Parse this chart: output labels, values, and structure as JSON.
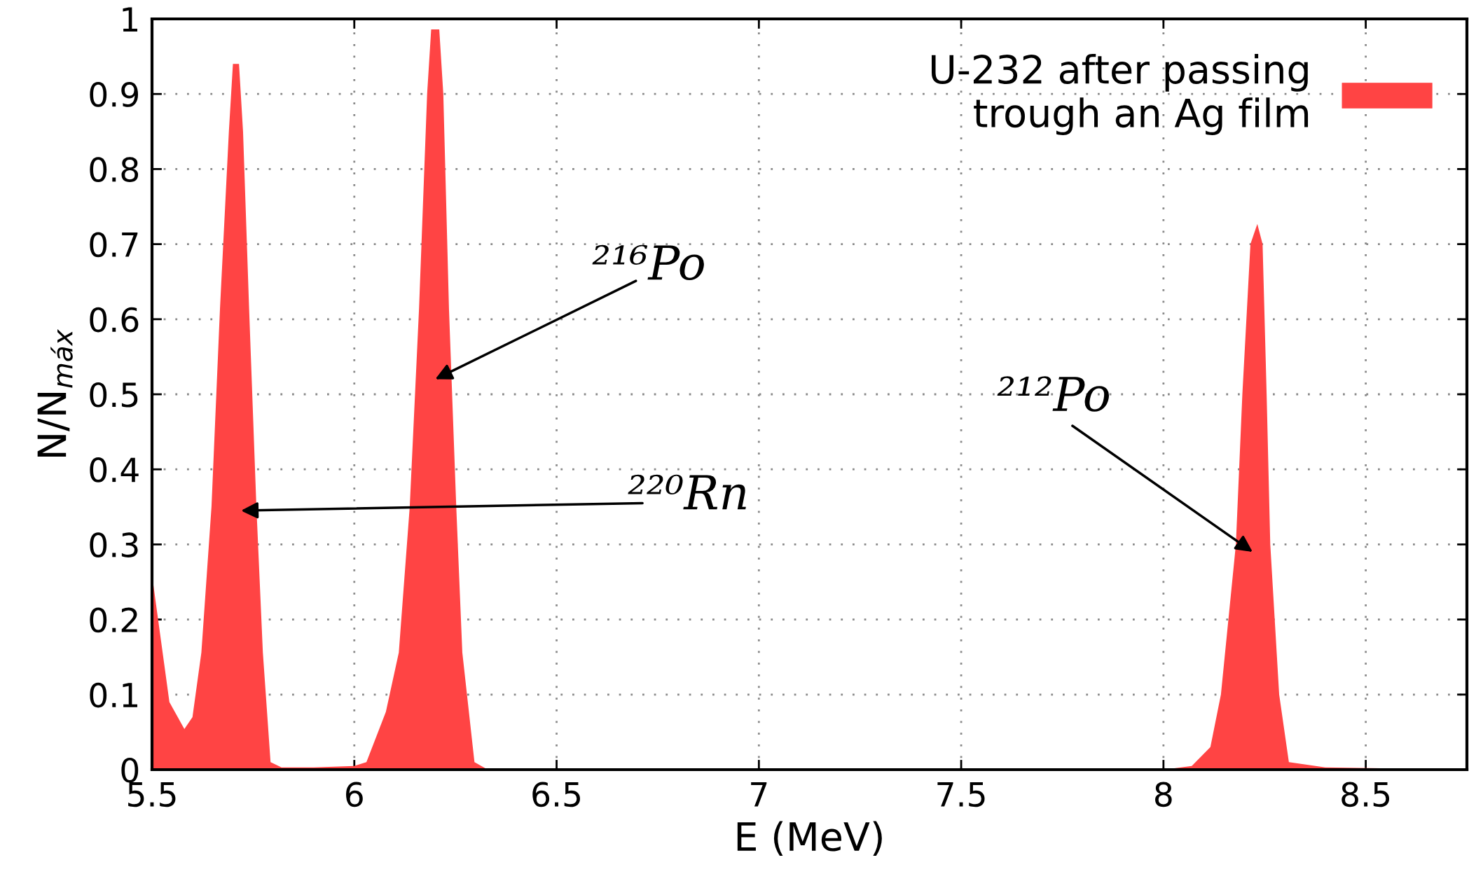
{
  "chart_data": {
    "type": "area",
    "xlabel": "E (MeV)",
    "ylabel": "N/N$_{máx}$",
    "series": [
      {
        "name": "U-232 after passing\ntrough an Ag film",
        "color": "#ff4444",
        "x": [
          5.5,
          5.51,
          5.543,
          5.58,
          5.6,
          5.622,
          5.647,
          5.668,
          5.69,
          5.7,
          5.708,
          5.715,
          5.725,
          5.74,
          5.758,
          5.774,
          5.793,
          5.82,
          5.9,
          6.0,
          6.03,
          6.078,
          6.11,
          6.137,
          6.16,
          6.18,
          6.19,
          6.21,
          6.22,
          6.234,
          6.252,
          6.267,
          6.297,
          6.33,
          8.0,
          8.07,
          8.116,
          8.142,
          8.179,
          8.195,
          8.215,
          8.232,
          8.245,
          8.255,
          8.264,
          8.286,
          8.31,
          8.4,
          8.75
        ],
        "values": [
          0.26,
          0.22,
          0.09,
          0.054,
          0.07,
          0.156,
          0.35,
          0.614,
          0.85,
          0.94,
          0.94,
          0.94,
          0.85,
          0.614,
          0.35,
          0.156,
          0.01,
          0.003,
          0.003,
          0.005,
          0.01,
          0.077,
          0.156,
          0.35,
          0.614,
          0.9,
          0.986,
          0.986,
          0.9,
          0.614,
          0.35,
          0.156,
          0.01,
          0,
          0,
          0.005,
          0.03,
          0.1,
          0.3,
          0.5,
          0.7,
          0.727,
          0.7,
          0.5,
          0.3,
          0.1,
          0.01,
          0.003,
          0
        ]
      }
    ],
    "xlim": [
      5.5,
      8.75
    ],
    "xticks": [
      5.5,
      6,
      6.5,
      7,
      7.5,
      8,
      8.5
    ],
    "ylim": [
      0,
      1
    ],
    "yticks": [
      0,
      0.1,
      0.2,
      0.3,
      0.4,
      0.5,
      0.6,
      0.7,
      0.8,
      0.9,
      1
    ],
    "grid": true,
    "legend": "top right",
    "annotations": [
      "²¹⁶Po",
      "²²⁰Rn",
      "²¹²Po"
    ]
  }
}
